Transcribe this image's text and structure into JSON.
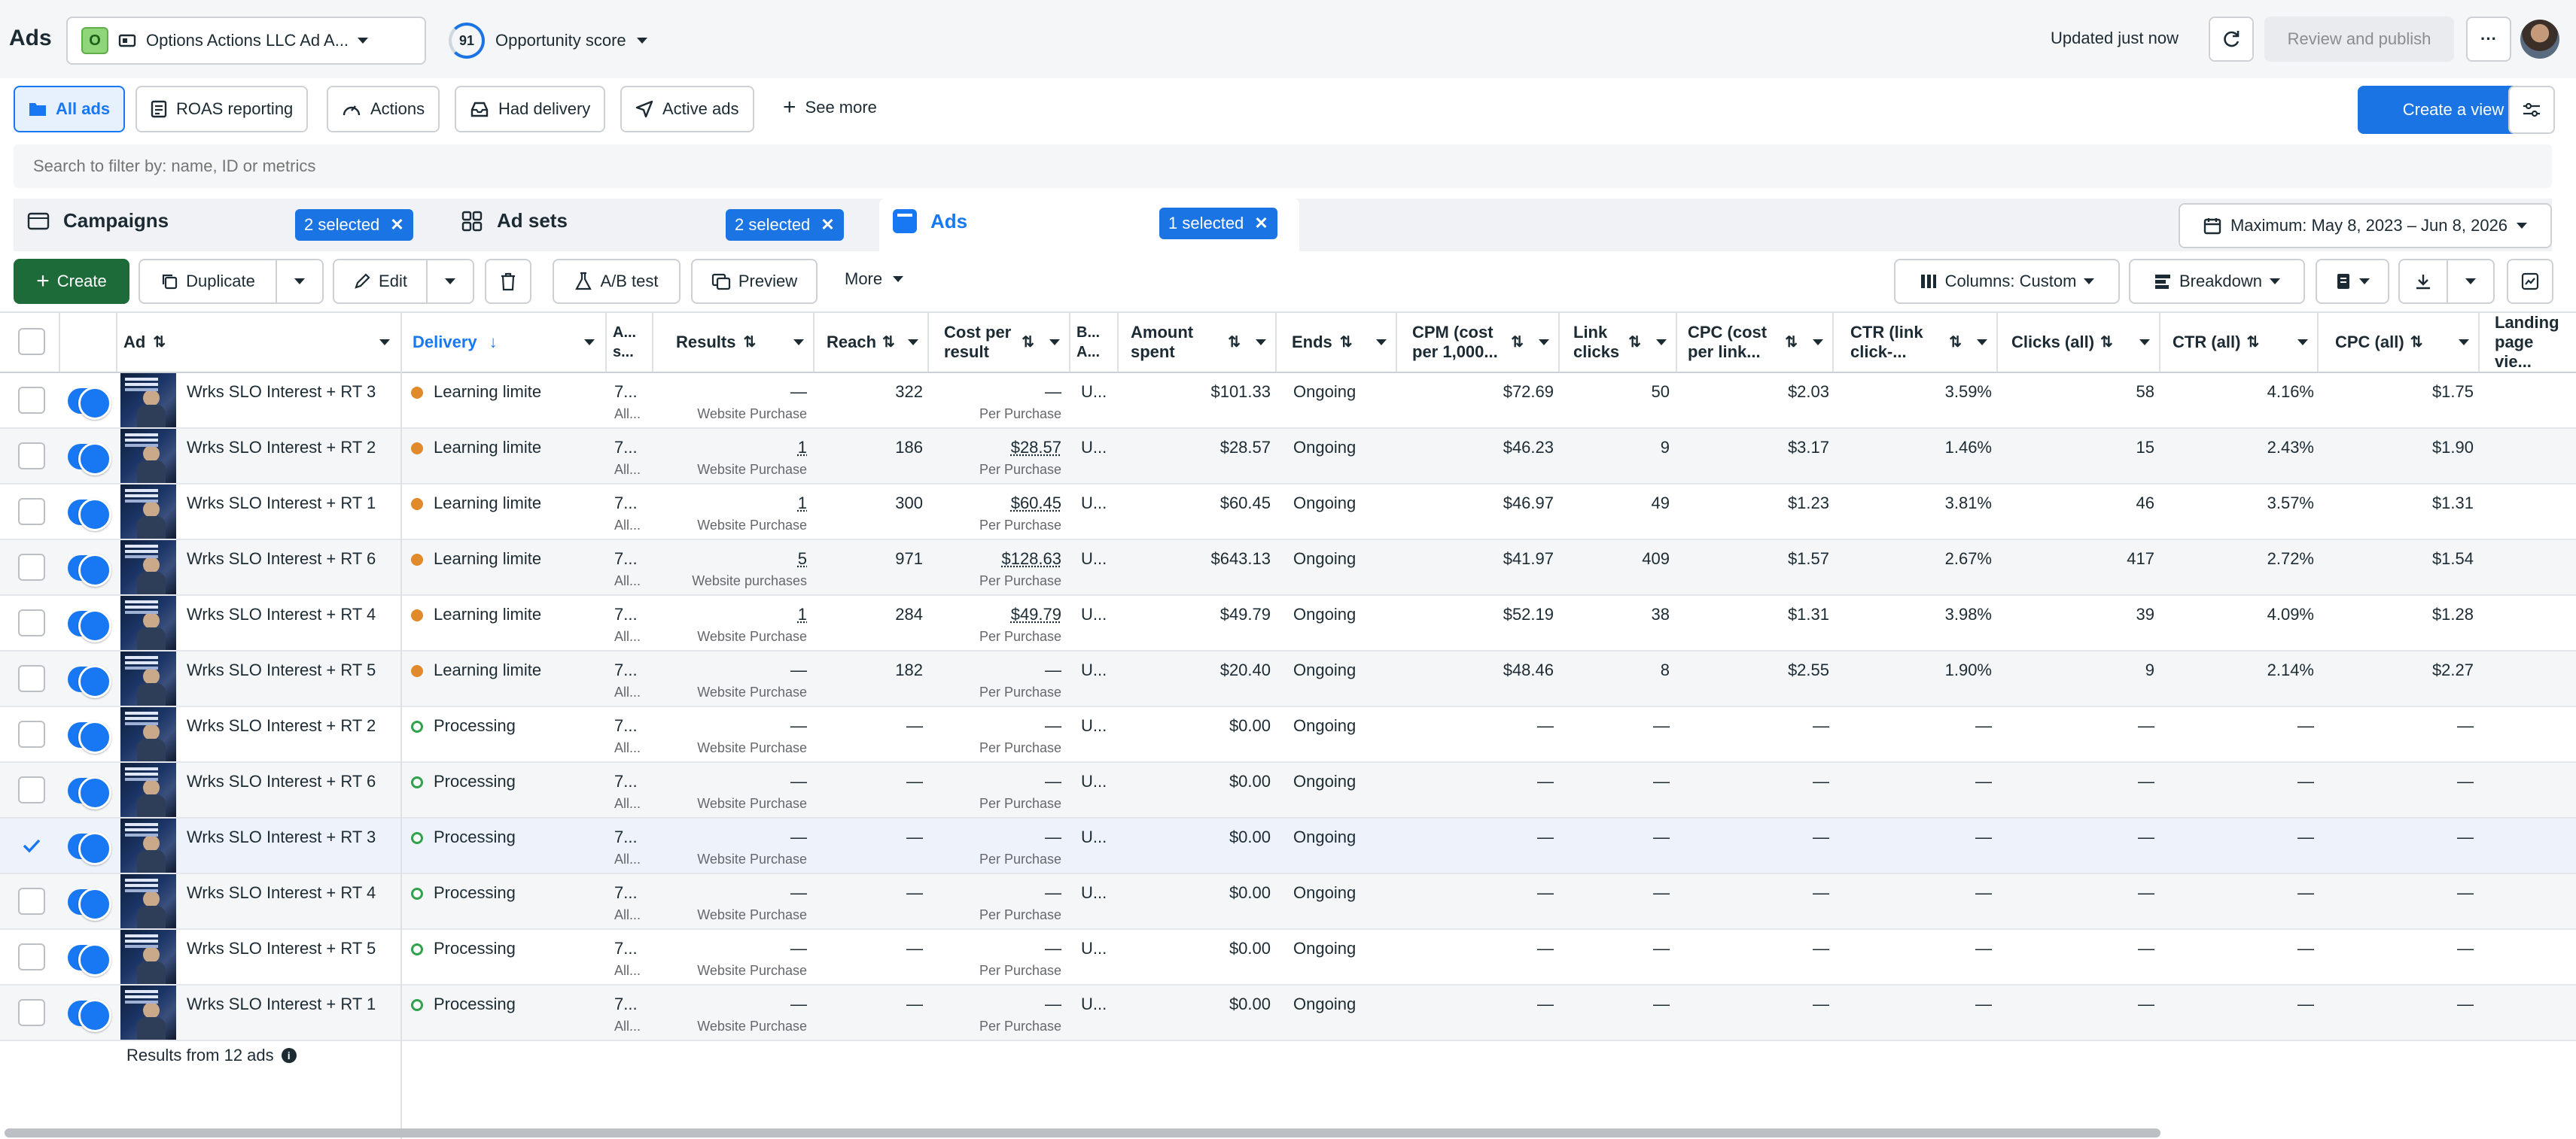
{
  "app": {
    "title": "Ads"
  },
  "account": {
    "badge": "O",
    "name": "Options Actions LLC Ad A..."
  },
  "opportunity": {
    "score": "91",
    "label": "Opportunity score"
  },
  "status": {
    "updated": "Updated just now",
    "review_publish": "Review and publish",
    "more": "···"
  },
  "views": [
    {
      "label": "All ads",
      "icon": "folder-icon"
    },
    {
      "label": "ROAS reporting",
      "icon": "report-icon"
    },
    {
      "label": "Actions",
      "icon": "actions-icon"
    },
    {
      "label": "Had delivery",
      "icon": "inbox-icon"
    },
    {
      "label": "Active ads",
      "icon": "send-icon"
    }
  ],
  "see_more": "See more",
  "create_view": "Create a view",
  "search": {
    "placeholder": "Search to filter by: name, ID or metrics"
  },
  "levels": {
    "campaigns": {
      "label": "Campaigns",
      "selected": "2 selected"
    },
    "adsets": {
      "label": "Ad sets",
      "selected": "2 selected"
    },
    "ads": {
      "label": "Ads",
      "selected": "1 selected"
    }
  },
  "date_range": "Maximum: May 8, 2023 – Jun 8, 2026",
  "toolbar": {
    "create": "Create",
    "duplicate": "Duplicate",
    "edit": "Edit",
    "ab_test": "A/B test",
    "preview": "Preview",
    "more": "More",
    "columns": "Columns: Custom",
    "breakdown": "Breakdown"
  },
  "columns": {
    "ad": "Ad",
    "delivery": "Delivery",
    "as": "A... s...",
    "results": "Results",
    "reach": "Reach",
    "cost_per_result": "Cost per result",
    "b": "B... A...",
    "amount_spent": "Amount spent",
    "ends": "Ends",
    "cpm": "CPM (cost per 1,000...",
    "link_clicks": "Link clicks",
    "cpc_link": "CPC (cost per link...",
    "ctr_link": "CTR (link click-...",
    "clicks_all": "Clicks (all)",
    "ctr_all": "CTR (all)",
    "cpc_all": "CPC (all)",
    "landing": "Landing page vie..."
  },
  "rows": [
    {
      "name": "Wrks SLO Interest + RT 3",
      "delivery": "Learning limite",
      "dtype": "learn",
      "as": "7...",
      "as_sub": "All...",
      "results": "—",
      "results_sub": "Website Purchase",
      "reach": "322",
      "cpr": "—",
      "cpr_sub": "Per Purchase",
      "b": "U...",
      "spent": "$101.33",
      "ends": "Ongoing",
      "cpm": "$72.69",
      "link_clicks": "50",
      "cpc_link": "$2.03",
      "ctr_link": "3.59%",
      "clicks_all": "58",
      "ctr_all": "4.16%",
      "cpc_all": "$1.75",
      "checked": false
    },
    {
      "name": "Wrks SLO Interest + RT 2",
      "delivery": "Learning limite",
      "dtype": "learn",
      "as": "7...",
      "as_sub": "All...",
      "results": "1",
      "results_sub": "Website Purchase",
      "reach": "186",
      "cpr": "$28.57",
      "cpr_sub": "Per Purchase",
      "b": "U...",
      "spent": "$28.57",
      "ends": "Ongoing",
      "cpm": "$46.23",
      "link_clicks": "9",
      "cpc_link": "$3.17",
      "ctr_link": "1.46%",
      "clicks_all": "15",
      "ctr_all": "2.43%",
      "cpc_all": "$1.90",
      "checked": false
    },
    {
      "name": "Wrks SLO Interest + RT 1",
      "delivery": "Learning limite",
      "dtype": "learn",
      "as": "7...",
      "as_sub": "All...",
      "results": "1",
      "results_sub": "Website Purchase",
      "reach": "300",
      "cpr": "$60.45",
      "cpr_sub": "Per Purchase",
      "b": "U...",
      "spent": "$60.45",
      "ends": "Ongoing",
      "cpm": "$46.97",
      "link_clicks": "49",
      "cpc_link": "$1.23",
      "ctr_link": "3.81%",
      "clicks_all": "46",
      "ctr_all": "3.57%",
      "cpc_all": "$1.31",
      "checked": false
    },
    {
      "name": "Wrks SLO Interest + RT 6",
      "delivery": "Learning limite",
      "dtype": "learn",
      "as": "7...",
      "as_sub": "All...",
      "results": "5",
      "results_sub": "Website purchases",
      "reach": "971",
      "cpr": "$128.63",
      "cpr_sub": "Per Purchase",
      "b": "U...",
      "spent": "$643.13",
      "ends": "Ongoing",
      "cpm": "$41.97",
      "link_clicks": "409",
      "cpc_link": "$1.57",
      "ctr_link": "2.67%",
      "clicks_all": "417",
      "ctr_all": "2.72%",
      "cpc_all": "$1.54",
      "checked": false
    },
    {
      "name": "Wrks SLO Interest + RT 4",
      "delivery": "Learning limite",
      "dtype": "learn",
      "as": "7...",
      "as_sub": "All...",
      "results": "1",
      "results_sub": "Website Purchase",
      "reach": "284",
      "cpr": "$49.79",
      "cpr_sub": "Per Purchase",
      "b": "U...",
      "spent": "$49.79",
      "ends": "Ongoing",
      "cpm": "$52.19",
      "link_clicks": "38",
      "cpc_link": "$1.31",
      "ctr_link": "3.98%",
      "clicks_all": "39",
      "ctr_all": "4.09%",
      "cpc_all": "$1.28",
      "checked": false
    },
    {
      "name": "Wrks SLO Interest + RT 5",
      "delivery": "Learning limite",
      "dtype": "learn",
      "as": "7...",
      "as_sub": "All...",
      "results": "—",
      "results_sub": "Website Purchase",
      "reach": "182",
      "cpr": "—",
      "cpr_sub": "Per Purchase",
      "b": "U...",
      "spent": "$20.40",
      "ends": "Ongoing",
      "cpm": "$48.46",
      "link_clicks": "8",
      "cpc_link": "$2.55",
      "ctr_link": "1.90%",
      "clicks_all": "9",
      "ctr_all": "2.14%",
      "cpc_all": "$2.27",
      "checked": false
    },
    {
      "name": "Wrks SLO Interest + RT 2",
      "delivery": "Processing",
      "dtype": "proc",
      "as": "7...",
      "as_sub": "All...",
      "results": "—",
      "results_sub": "Website Purchase",
      "reach": "—",
      "cpr": "—",
      "cpr_sub": "Per Purchase",
      "b": "U...",
      "spent": "$0.00",
      "ends": "Ongoing",
      "cpm": "—",
      "link_clicks": "—",
      "cpc_link": "—",
      "ctr_link": "—",
      "clicks_all": "—",
      "ctr_all": "—",
      "cpc_all": "—",
      "checked": false
    },
    {
      "name": "Wrks SLO Interest + RT 6",
      "delivery": "Processing",
      "dtype": "proc",
      "as": "7...",
      "as_sub": "All...",
      "results": "—",
      "results_sub": "Website Purchase",
      "reach": "—",
      "cpr": "—",
      "cpr_sub": "Per Purchase",
      "b": "U...",
      "spent": "$0.00",
      "ends": "Ongoing",
      "cpm": "—",
      "link_clicks": "—",
      "cpc_link": "—",
      "ctr_link": "—",
      "clicks_all": "—",
      "ctr_all": "—",
      "cpc_all": "—",
      "checked": false
    },
    {
      "name": "Wrks SLO Interest + RT 3",
      "delivery": "Processing",
      "dtype": "proc",
      "as": "7...",
      "as_sub": "All...",
      "results": "—",
      "results_sub": "Website Purchase",
      "reach": "—",
      "cpr": "—",
      "cpr_sub": "Per Purchase",
      "b": "U...",
      "spent": "$0.00",
      "ends": "Ongoing",
      "cpm": "—",
      "link_clicks": "—",
      "cpc_link": "—",
      "ctr_link": "—",
      "clicks_all": "—",
      "ctr_all": "—",
      "cpc_all": "—",
      "checked": true
    },
    {
      "name": "Wrks SLO Interest + RT 4",
      "delivery": "Processing",
      "dtype": "proc",
      "as": "7...",
      "as_sub": "All...",
      "results": "—",
      "results_sub": "Website Purchase",
      "reach": "—",
      "cpr": "—",
      "cpr_sub": "Per Purchase",
      "b": "U...",
      "spent": "$0.00",
      "ends": "Ongoing",
      "cpm": "—",
      "link_clicks": "—",
      "cpc_link": "—",
      "ctr_link": "—",
      "clicks_all": "—",
      "ctr_all": "—",
      "cpc_all": "—",
      "checked": false
    },
    {
      "name": "Wrks SLO Interest + RT 5",
      "delivery": "Processing",
      "dtype": "proc",
      "as": "7...",
      "as_sub": "All...",
      "results": "—",
      "results_sub": "Website Purchase",
      "reach": "—",
      "cpr": "—",
      "cpr_sub": "Per Purchase",
      "b": "U...",
      "spent": "$0.00",
      "ends": "Ongoing",
      "cpm": "—",
      "link_clicks": "—",
      "cpc_link": "—",
      "ctr_link": "—",
      "clicks_all": "—",
      "ctr_all": "—",
      "cpc_all": "—",
      "checked": false
    },
    {
      "name": "Wrks SLO Interest + RT 1",
      "delivery": "Processing",
      "dtype": "proc",
      "as": "7...",
      "as_sub": "All...",
      "results": "—",
      "results_sub": "Website Purchase",
      "reach": "—",
      "cpr": "—",
      "cpr_sub": "Per Purchase",
      "b": "U...",
      "spent": "$0.00",
      "ends": "Ongoing",
      "cpm": "—",
      "link_clicks": "—",
      "cpc_link": "—",
      "ctr_link": "—",
      "clicks_all": "—",
      "ctr_all": "—",
      "cpc_all": "—",
      "checked": false
    }
  ],
  "footer": {
    "results": "Results from 12 ads"
  },
  "colors": {
    "accent": "#1877f2",
    "create_green": "#1e6b3a",
    "badge_blue": "#1b74e4",
    "learning": "#e08a2c",
    "processing": "#31a24c"
  }
}
